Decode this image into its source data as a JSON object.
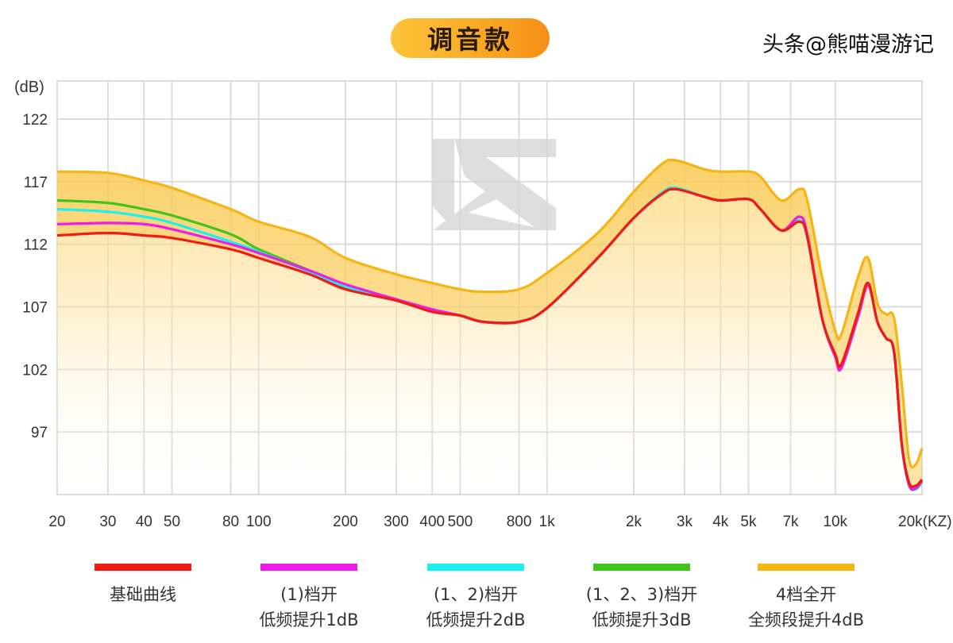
{
  "title": "调音款",
  "watermark": "头条@熊喵漫游记",
  "chart_data": {
    "type": "line",
    "title": "调音款",
    "ylabel": "(dB)",
    "xlabel": "(KZ)",
    "x_scale": "log",
    "xlim": [
      20,
      20000
    ],
    "ylim": [
      92,
      125
    ],
    "grid": true,
    "legend_placement": "bottom",
    "y_ticks": [
      122,
      117,
      112,
      107,
      102,
      97
    ],
    "y_tick_labels": [
      "122",
      "117",
      "112",
      "107",
      "102",
      "97"
    ],
    "x_ticks": [
      20,
      30,
      40,
      50,
      80,
      100,
      200,
      300,
      400,
      500,
      800,
      1000,
      2000,
      3000,
      4000,
      5000,
      7000,
      10000,
      20000
    ],
    "x_tick_labels": [
      "20",
      "30",
      "40",
      "50",
      "80",
      "100",
      "200",
      "300",
      "400",
      "500",
      "800",
      "1k",
      "2k",
      "3k",
      "4k",
      "5k",
      "7k",
      "10k",
      "20k"
    ],
    "x": [
      20,
      30,
      40,
      50,
      80,
      100,
      150,
      200,
      300,
      400,
      500,
      600,
      800,
      1000,
      1500,
      2000,
      2500,
      2800,
      3500,
      4000,
      5000,
      5500,
      6500,
      7500,
      8000,
      9000,
      10000,
      10500,
      12000,
      13000,
      14000,
      15000,
      16000,
      17000,
      18000,
      19000,
      20000
    ],
    "series": [
      {
        "name": "4档全开 全频段提升4dB",
        "label_lines": [
          "4档全开",
          "全频段提升4dB"
        ],
        "color": "#f5b514",
        "values": [
          117.8,
          117.7,
          117.1,
          116.5,
          114.8,
          113.8,
          112.6,
          110.9,
          109.6,
          108.9,
          108.4,
          108.2,
          108.4,
          109.7,
          112.9,
          116.2,
          118.4,
          118.7,
          118.0,
          117.8,
          117.8,
          117.4,
          115.5,
          116.4,
          115.5,
          109.4,
          105.1,
          104.8,
          109.4,
          110.9,
          107.3,
          106.4,
          106.1,
          100.9,
          94.9,
          94.4,
          95.7
        ]
      },
      {
        "name": "(1、2、3)档开 低频提升3dB",
        "label_lines": [
          "(1、2、3)档开",
          "低频提升3dB"
        ],
        "color": "#3fc41c",
        "values": [
          115.5,
          115.3,
          114.8,
          114.3,
          112.8,
          111.6,
          109.9,
          108.5,
          107.5,
          106.7,
          106.3,
          105.8,
          105.8,
          106.9,
          110.9,
          114.1,
          116.1,
          116.5,
          115.8,
          115.5,
          115.6,
          114.8,
          113.1,
          113.9,
          112.6,
          106.1,
          103.2,
          102.4,
          106.5,
          108.9,
          105.8,
          104.5,
          103.4,
          96.1,
          93.0,
          92.6,
          93.2
        ]
      },
      {
        "name": "(1、2)档开 低频提升2dB",
        "label_lines": [
          "(1、2)档开",
          "低频提升2dB"
        ],
        "color": "#19f0f0",
        "values": [
          114.8,
          114.6,
          114.2,
          113.7,
          112.2,
          111.4,
          109.8,
          108.6,
          107.5,
          106.7,
          106.3,
          105.8,
          105.8,
          106.9,
          110.9,
          114.1,
          116.1,
          116.5,
          115.8,
          115.5,
          115.6,
          114.8,
          113.1,
          113.9,
          112.6,
          106.1,
          103.2,
          102.3,
          106.4,
          108.8,
          105.8,
          104.5,
          103.4,
          96.1,
          92.8,
          92.4,
          93.0
        ]
      },
      {
        "name": "(1)档开 低频提升1dB",
        "label_lines": [
          "(1)档开",
          "低频提升1dB"
        ],
        "color": "#ee1ce8",
        "values": [
          113.6,
          113.7,
          113.6,
          113.2,
          112.0,
          111.3,
          109.9,
          108.8,
          107.6,
          106.8,
          106.3,
          105.8,
          105.8,
          106.9,
          110.9,
          114.1,
          116.0,
          116.4,
          115.8,
          115.5,
          115.6,
          114.8,
          113.1,
          114.2,
          112.8,
          106.1,
          103.0,
          102.1,
          106.2,
          108.7,
          105.8,
          104.5,
          103.4,
          96.1,
          92.8,
          92.5,
          93.1
        ]
      },
      {
        "name": "基础曲线",
        "label_lines": [
          "基础曲线",
          ""
        ],
        "color": "#ee1c12",
        "values": [
          112.7,
          112.9,
          112.7,
          112.5,
          111.6,
          110.9,
          109.6,
          108.4,
          107.5,
          106.6,
          106.3,
          105.8,
          105.8,
          106.9,
          110.9,
          114.1,
          116.0,
          116.4,
          115.8,
          115.5,
          115.6,
          114.8,
          113.1,
          113.8,
          112.6,
          106.1,
          103.2,
          102.4,
          106.5,
          108.9,
          105.8,
          104.5,
          103.4,
          96.1,
          93.0,
          92.7,
          93.2
        ]
      }
    ],
    "legend_order": [
      4,
      3,
      2,
      1,
      0
    ]
  }
}
